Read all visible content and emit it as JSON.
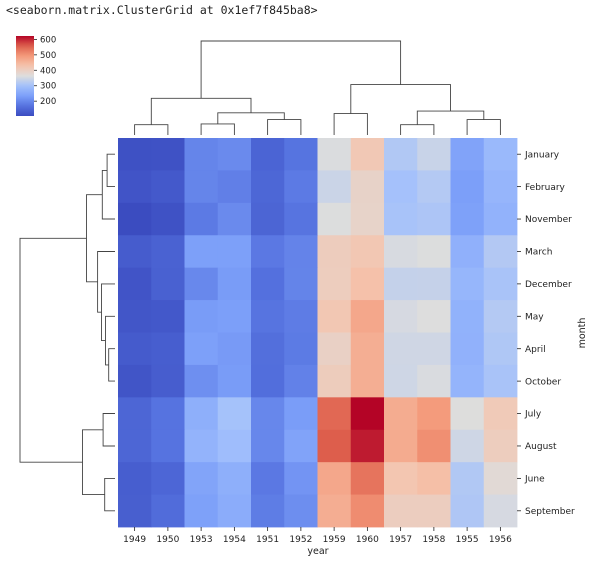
{
  "repr": "<seaborn.matrix.ClusterGrid at 0x1ef7f845ba8>",
  "colors": {
    "cmap": "coolwarm",
    "dendrogram": "#444444",
    "text": "#222222"
  },
  "chart_data": {
    "type": "heatmap",
    "xlabel": "year",
    "ylabel": "month",
    "x_categories": [
      "1949",
      "1950",
      "1953",
      "1954",
      "1951",
      "1952",
      "1959",
      "1960",
      "1957",
      "1958",
      "1955",
      "1956"
    ],
    "y_categories": [
      "January",
      "February",
      "November",
      "March",
      "December",
      "May",
      "April",
      "October",
      "July",
      "August",
      "June",
      "September"
    ],
    "values": [
      [
        112,
        115,
        196,
        204,
        145,
        171,
        360,
        417,
        315,
        340,
        242,
        284
      ],
      [
        118,
        126,
        196,
        188,
        150,
        180,
        342,
        391,
        301,
        318,
        233,
        277
      ],
      [
        104,
        114,
        180,
        203,
        146,
        172,
        362,
        390,
        305,
        310,
        237,
        271
      ],
      [
        132,
        141,
        236,
        235,
        178,
        193,
        406,
        419,
        356,
        362,
        267,
        317
      ],
      [
        118,
        140,
        201,
        229,
        166,
        194,
        405,
        432,
        336,
        337,
        278,
        306
      ],
      [
        121,
        125,
        229,
        234,
        172,
        183,
        420,
        472,
        355,
        363,
        270,
        318
      ],
      [
        129,
        135,
        235,
        227,
        163,
        181,
        396,
        461,
        348,
        348,
        269,
        313
      ],
      [
        119,
        133,
        211,
        229,
        162,
        191,
        407,
        461,
        347,
        359,
        274,
        306
      ],
      [
        148,
        170,
        264,
        302,
        199,
        230,
        548,
        622,
        465,
        491,
        364,
        413
      ],
      [
        148,
        170,
        272,
        293,
        199,
        242,
        559,
        606,
        467,
        505,
        347,
        405
      ],
      [
        135,
        149,
        243,
        264,
        178,
        218,
        472,
        535,
        422,
        435,
        315,
        374
      ],
      [
        136,
        158,
        237,
        259,
        184,
        209,
        463,
        508,
        404,
        404,
        312,
        355
      ]
    ],
    "colorbar": {
      "vmin": 104,
      "vmax": 622,
      "ticks": [
        200,
        300,
        400,
        500,
        600
      ]
    },
    "row_dendrogram": [
      {
        "children": [
          0,
          1
        ],
        "height": 1.0
      },
      {
        "children": [
          "L0",
          2
        ],
        "height": 1.6
      },
      {
        "children": [
          6,
          7
        ],
        "height": 0.8
      },
      {
        "children": [
          5,
          "L2"
        ],
        "height": 1.2
      },
      {
        "children": [
          4,
          "L3"
        ],
        "height": 1.7
      },
      {
        "children": [
          3,
          "L4"
        ],
        "height": 2.2
      },
      {
        "children": [
          "L1",
          "L5"
        ],
        "height": 3.6
      },
      {
        "children": [
          8,
          9
        ],
        "height": 1.5
      },
      {
        "children": [
          10,
          11
        ],
        "height": 1.3
      },
      {
        "children": [
          "L7",
          "L8"
        ],
        "height": 4.1
      },
      {
        "children": [
          "L6",
          "L9"
        ],
        "height": 12.0
      }
    ],
    "col_dendrogram": [
      {
        "children": [
          0,
          1
        ],
        "height": 1.2
      },
      {
        "children": [
          2,
          3
        ],
        "height": 1.3
      },
      {
        "children": [
          4,
          5
        ],
        "height": 1.8
      },
      {
        "children": [
          "L1",
          "L2"
        ],
        "height": 2.6
      },
      {
        "children": [
          "L0",
          "L3"
        ],
        "height": 4.3
      },
      {
        "children": [
          6,
          7
        ],
        "height": 2.5
      },
      {
        "children": [
          8,
          9
        ],
        "height": 1.2
      },
      {
        "children": [
          10,
          11
        ],
        "height": 1.8
      },
      {
        "children": [
          "L6",
          "L7"
        ],
        "height": 2.8
      },
      {
        "children": [
          "L5",
          "L8"
        ],
        "height": 5.9
      },
      {
        "children": [
          "L4",
          "L9"
        ],
        "height": 11.0
      }
    ]
  }
}
